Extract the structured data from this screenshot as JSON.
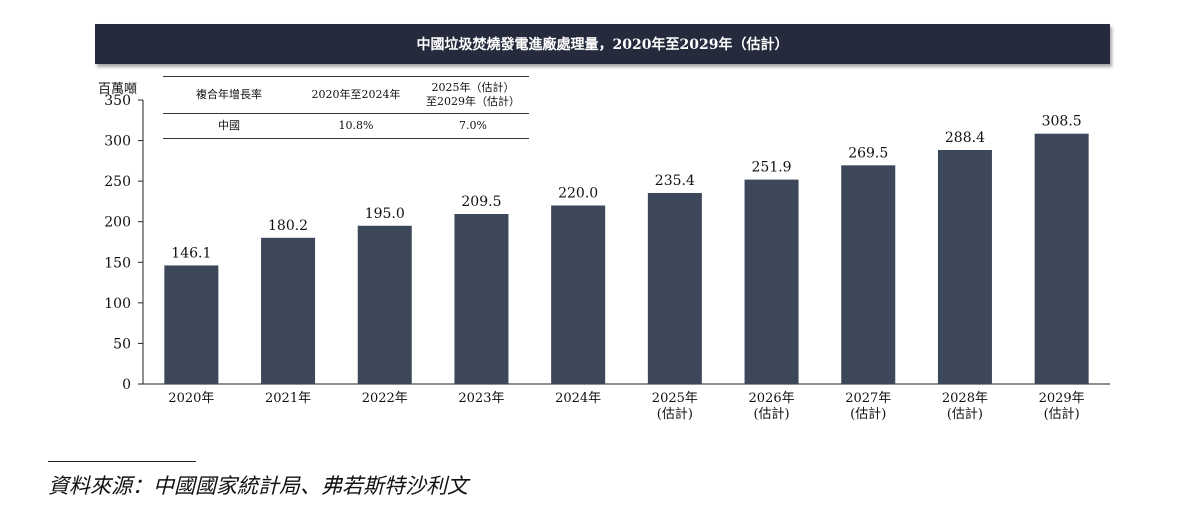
{
  "title": "中國垃圾焚燒發電進廠處理量，2020年至2029年（估計）",
  "unit": "百萬噸",
  "cagr_table": {
    "headers": [
      "複合年增長率",
      "2020年至2024年",
      "2025年（估計）\n至2029年（估計）"
    ],
    "rows": [
      [
        "中國",
        "10.8%",
        "7.0%"
      ]
    ]
  },
  "chart_data": {
    "type": "bar",
    "title": "中國垃圾焚燒發電進廠處理量，2020年至2029年（估計）",
    "ylabel": "百萬噸",
    "xlabel": "",
    "categories": [
      "2020年",
      "2021年",
      "2022年",
      "2023年",
      "2024年",
      "2025年\n(估計)",
      "2026年\n(估計)",
      "2027年\n(估計)",
      "2028年\n(估計)",
      "2029年\n(估計)"
    ],
    "values": [
      146.1,
      180.2,
      195.0,
      209.5,
      220.0,
      235.4,
      251.9,
      269.5,
      288.4,
      308.5
    ],
    "value_labels": [
      "146.1",
      "180.2",
      "195.0",
      "209.5",
      "220.0",
      "235.4",
      "251.9",
      "269.5",
      "288.4",
      "308.5"
    ],
    "ylim": [
      0,
      350
    ],
    "yticks": [
      0,
      50,
      100,
      150,
      200,
      250,
      300,
      350
    ],
    "grid": false,
    "bar_color": "#3d475a"
  },
  "source": "資料來源：中國國家統計局、弗若斯特沙利文"
}
